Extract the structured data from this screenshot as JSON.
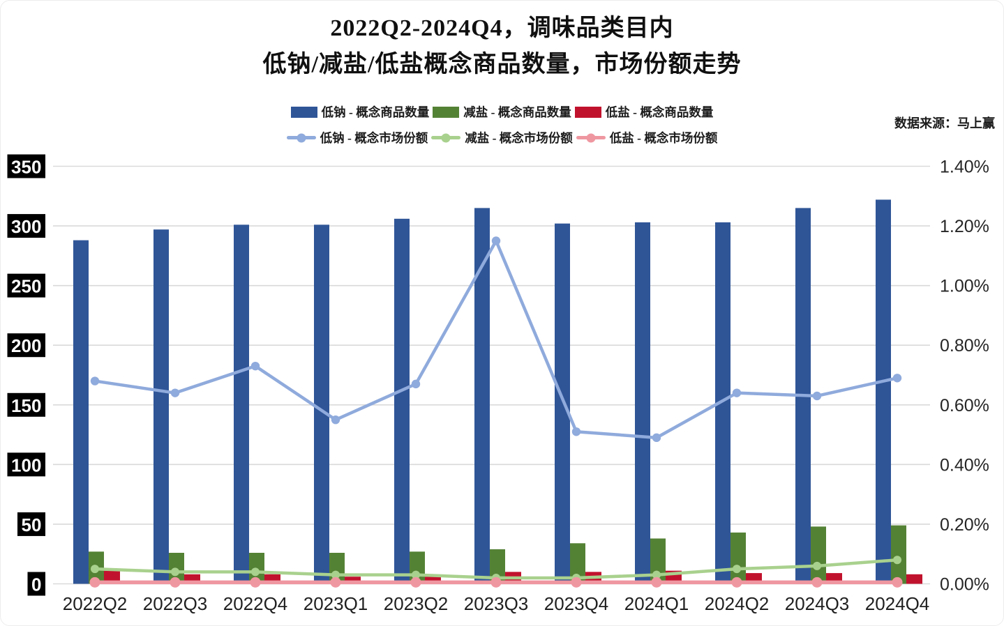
{
  "header": {
    "title_line1": "2022Q2-2024Q4，调味品类目内",
    "title_line2": "低钠/减盐/低盐概念商品数量，市场份额走势"
  },
  "source_note": "数据来源：马上赢",
  "chart_data": {
    "type": "bar",
    "subtype": "combo-bar-line-dual-axis",
    "categories": [
      "2022Q2",
      "2022Q3",
      "2022Q4",
      "2023Q1",
      "2023Q2",
      "2023Q3",
      "2023Q4",
      "2024Q1",
      "2024Q2",
      "2024Q3",
      "2024Q4"
    ],
    "bar_series": [
      {
        "name": "低钠 - 概念商品数量",
        "color": "#2F5597",
        "axis": "left",
        "values": [
          288,
          297,
          301,
          301,
          306,
          315,
          302,
          303,
          303,
          315,
          322
        ]
      },
      {
        "name": "减盐 - 概念商品数量",
        "color": "#548235",
        "axis": "left",
        "values": [
          27,
          26,
          26,
          26,
          27,
          29,
          34,
          38,
          43,
          48,
          49
        ]
      },
      {
        "name": "低盐 - 概念商品数量",
        "color": "#C1122D",
        "axis": "left",
        "values": [
          11,
          8,
          8,
          6,
          6,
          10,
          10,
          11,
          9,
          9,
          8
        ]
      }
    ],
    "line_series": [
      {
        "name": "低钠 - 概念市场份额",
        "color": "#8FAADC",
        "axis": "right",
        "unit": "%",
        "values": [
          0.68,
          0.64,
          0.73,
          0.55,
          0.67,
          1.15,
          0.51,
          0.49,
          0.64,
          0.63,
          0.69
        ]
      },
      {
        "name": "减盐 - 概念市场份额",
        "color": "#A9D18E",
        "axis": "right",
        "unit": "%",
        "values": [
          0.05,
          0.04,
          0.04,
          0.03,
          0.03,
          0.02,
          0.02,
          0.03,
          0.05,
          0.06,
          0.08
        ]
      },
      {
        "name": "低盐 - 概念市场份额",
        "color": "#EF97A1",
        "axis": "right",
        "unit": "%",
        "values": [
          0.005,
          0.005,
          0.005,
          0.005,
          0.005,
          0.005,
          0.005,
          0.005,
          0.005,
          0.005,
          0.005
        ]
      }
    ],
    "left_axis": {
      "min": 0,
      "max": 350,
      "step": 50,
      "tick_labels": [
        "0",
        "50",
        "100",
        "150",
        "200",
        "250",
        "300",
        "350"
      ],
      "label_bg": "#000000",
      "label_color": "#FFFFFF"
    },
    "right_axis": {
      "min": 0,
      "max": 1.4,
      "step": 0.2,
      "tick_labels": [
        "0.00%",
        "0.20%",
        "0.40%",
        "0.60%",
        "0.80%",
        "1.00%",
        "1.20%",
        "1.40%"
      ],
      "label_color": "#262626"
    },
    "grid": {
      "on": true,
      "color": "#D9D9D9"
    },
    "legend_position": "top-center"
  }
}
